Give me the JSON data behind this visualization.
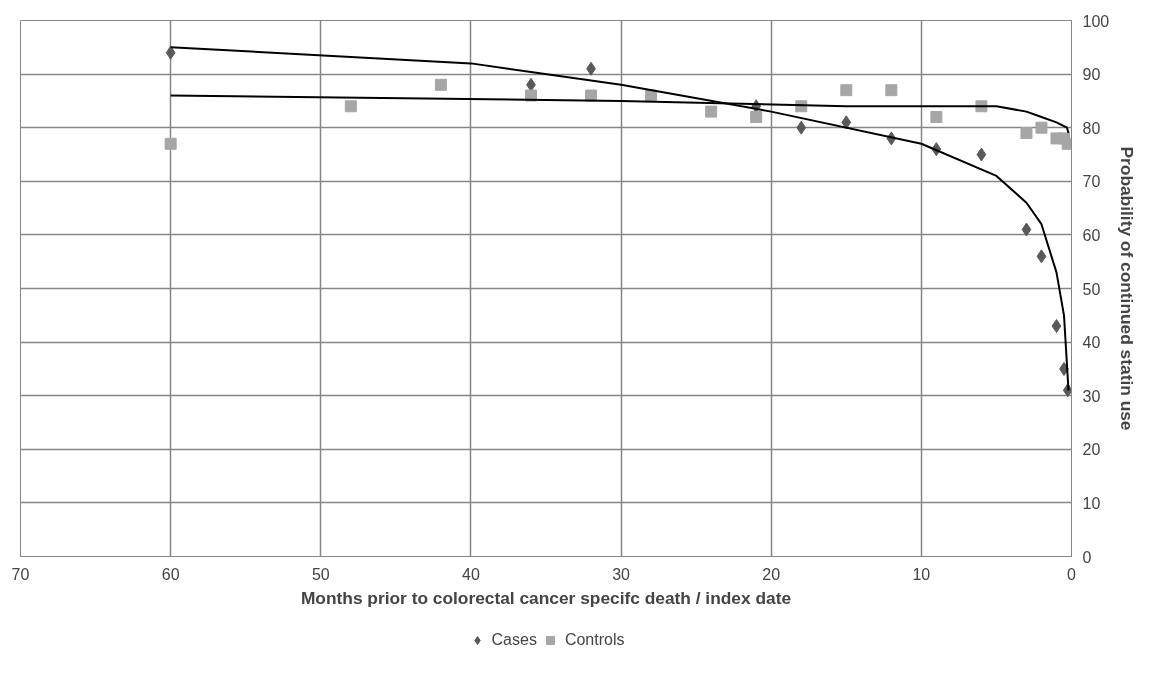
{
  "chart_data": {
    "type": "scatter",
    "xlabel": "Months prior to colorectal cancer specifc death / index date",
    "ylabel": "Probability of continued statin use",
    "xlim": [
      70,
      0
    ],
    "xticks": [
      0,
      10,
      20,
      30,
      40,
      50,
      60,
      70
    ],
    "ylim": [
      0,
      100
    ],
    "yticks": [
      0,
      10,
      20,
      30,
      40,
      50,
      60,
      70,
      80,
      90,
      100
    ],
    "grid": true,
    "legend": "bottom",
    "series": [
      {
        "name": "Cases",
        "color": "#595959",
        "marker": "diamond",
        "x": [
          60,
          36,
          32,
          21,
          18,
          15,
          12,
          9,
          6,
          3,
          2,
          1,
          0.5,
          0.25
        ],
        "values": [
          94,
          88,
          91,
          84,
          80,
          81,
          78,
          76,
          75,
          61,
          56,
          43,
          35,
          31
        ]
      },
      {
        "name": "Controls",
        "color": "#a6a6a6",
        "marker": "square",
        "x": [
          60,
          48,
          42,
          36,
          32,
          28,
          24,
          21,
          18,
          15,
          12,
          9,
          6,
          3,
          2,
          1,
          0.5,
          0.25
        ],
        "values": [
          77,
          84,
          88,
          86,
          86,
          86,
          83,
          82,
          84,
          87,
          87,
          82,
          84,
          79,
          80,
          78,
          78,
          77
        ]
      },
      {
        "type": "line",
        "color": "#000000",
        "x": [
          60,
          40,
          30,
          20,
          10,
          5,
          3,
          2,
          1,
          0.5,
          0.2
        ],
        "values": [
          95,
          92,
          88,
          83,
          77,
          71,
          66,
          62,
          53,
          45,
          31
        ]
      },
      {
        "type": "line",
        "color": "#000000",
        "x": [
          60,
          30,
          15,
          10,
          5,
          3,
          2,
          1,
          0.3,
          0.2
        ],
        "values": [
          86,
          85,
          84,
          84,
          84,
          83,
          82,
          81,
          80,
          79
        ]
      }
    ]
  }
}
